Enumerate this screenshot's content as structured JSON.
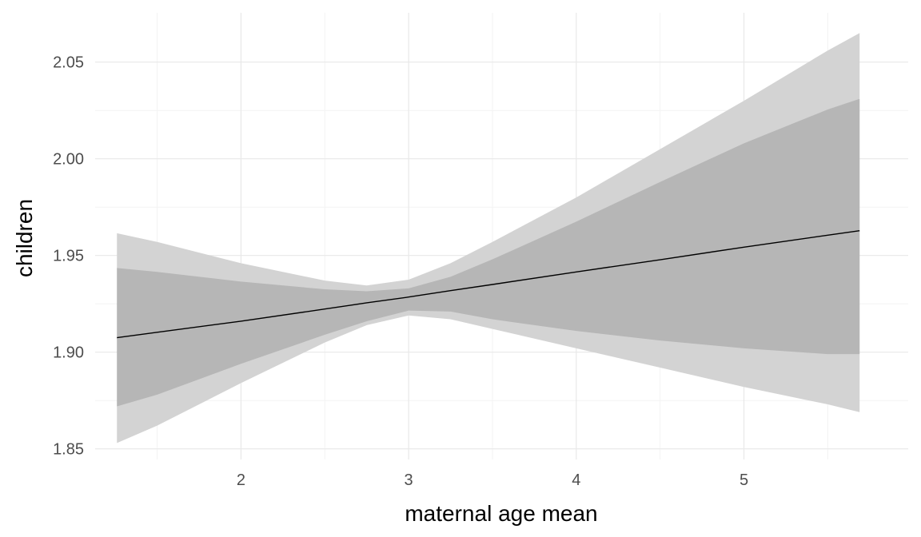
{
  "chart_data": {
    "type": "line",
    "title": "",
    "xlabel": "maternal age mean",
    "ylabel": "children",
    "xlim": [
      1.13,
      5.98
    ],
    "ylim": [
      1.8445,
      2.0755
    ],
    "x_ticks": [
      2,
      3,
      4,
      5
    ],
    "x_tick_labels": [
      "2",
      "3",
      "4",
      "5"
    ],
    "x_minor_ticks": [
      1.5,
      2.5,
      3.5,
      4.5,
      5.5
    ],
    "y_ticks": [
      1.85,
      1.9,
      1.95,
      2.0,
      2.05
    ],
    "y_tick_labels": [
      "1.85",
      "1.90",
      "1.95",
      "2.00",
      "2.05"
    ],
    "y_minor_ticks": [
      1.875,
      1.925,
      1.975,
      2.025
    ],
    "grid": true,
    "legend": "none",
    "colors": {
      "line": "#000000",
      "band_outer": "#d3d3d3",
      "band_inner": "#b0b0b0",
      "grid_major": "#e8e8e8",
      "grid_minor": "#f3f3f3"
    },
    "x": [
      1.26,
      1.5,
      2.0,
      2.5,
      2.75,
      3.0,
      3.25,
      3.5,
      4.0,
      4.5,
      5.0,
      5.5,
      5.69
    ],
    "series": [
      {
        "role": "fit",
        "values": [
          1.9075,
          1.9103,
          1.916,
          1.9223,
          1.9255,
          1.9285,
          1.9318,
          1.935,
          1.9415,
          1.9478,
          1.9543,
          1.9605,
          1.9628
        ]
      },
      {
        "role": "band_outer",
        "upper": [
          1.9615,
          1.957,
          1.946,
          1.937,
          1.9345,
          1.9375,
          1.946,
          1.957,
          1.98,
          2.005,
          2.03,
          2.056,
          2.065
        ],
        "lower": [
          1.853,
          1.862,
          1.884,
          1.905,
          1.914,
          1.919,
          1.917,
          1.912,
          1.902,
          1.892,
          1.882,
          1.873,
          1.869
        ]
      },
      {
        "role": "band_inner",
        "upper": [
          1.9435,
          1.9415,
          1.9365,
          1.9325,
          1.9315,
          1.933,
          1.939,
          1.948,
          1.9675,
          1.988,
          2.008,
          2.0255,
          2.031
        ],
        "lower": [
          1.872,
          1.878,
          1.894,
          1.909,
          1.916,
          1.9215,
          1.921,
          1.917,
          1.911,
          1.906,
          1.902,
          1.899,
          1.899
        ]
      }
    ]
  }
}
